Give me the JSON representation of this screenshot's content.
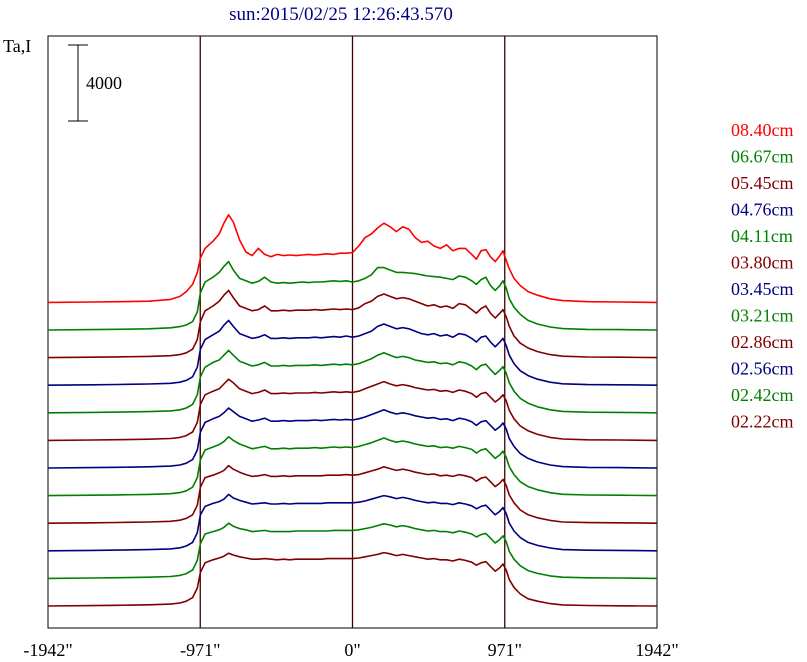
{
  "chart_data": {
    "type": "line",
    "title": "sun:2015/02/25 12:26:43.570",
    "ylabel": "Ta,I",
    "xlabel": "",
    "scale_bar_label": "4000",
    "scale_bar_value": 4000,
    "xlim": [
      -1942,
      1942
    ],
    "x_ticks": [
      {
        "value": -1942,
        "label": "-1942\""
      },
      {
        "value": -971,
        "label": "-971\""
      },
      {
        "value": 0,
        "label": "0\""
      },
      {
        "value": 971,
        "label": "971\""
      },
      {
        "value": 1942,
        "label": "1942\""
      }
    ],
    "vertical_lines": [
      -971,
      0,
      971
    ],
    "stack_offset": 2300,
    "x": [
      -1942,
      -1660,
      -1500,
      -1300,
      -1160,
      -1100,
      -1060,
      -1020,
      -990,
      -970,
      -940,
      -890,
      -850,
      -820,
      -790,
      -760,
      -720,
      -680,
      -640,
      -600,
      -560,
      -520,
      -480,
      -440,
      -400,
      -360,
      -320,
      -280,
      -240,
      -200,
      -160,
      -120,
      -80,
      -40,
      0,
      40,
      80,
      120,
      160,
      200,
      240,
      280,
      320,
      360,
      400,
      440,
      480,
      520,
      560,
      600,
      640,
      680,
      720,
      760,
      790,
      820,
      850,
      880,
      910,
      940,
      960,
      980,
      1000,
      1030,
      1070,
      1120,
      1180,
      1260,
      1340,
      1500,
      1700,
      1942
    ],
    "series": [
      {
        "name": "08.40cm",
        "color": "#ff0000",
        "values": [
          0,
          30,
          60,
          100,
          250,
          500,
          900,
          1500,
          2500,
          3700,
          4500,
          5100,
          5700,
          6600,
          7300,
          6700,
          5200,
          4200,
          3900,
          4500,
          4000,
          3800,
          4000,
          3900,
          3950,
          3900,
          3950,
          4000,
          3950,
          4000,
          4050,
          4000,
          4100,
          4100,
          4150,
          4700,
          5400,
          5700,
          6200,
          6600,
          6300,
          5900,
          6300,
          6100,
          5400,
          5000,
          5100,
          4700,
          4500,
          4800,
          4300,
          4500,
          4500,
          4000,
          3600,
          4300,
          4400,
          3800,
          3400,
          3900,
          4300,
          3500,
          2800,
          2000,
          1400,
          900,
          600,
          300,
          150,
          60,
          30,
          0
        ]
      },
      {
        "name": "06.67cm",
        "color": "#008000",
        "values": [
          0,
          30,
          60,
          100,
          180,
          280,
          420,
          700,
          1500,
          3100,
          4000,
          4400,
          4800,
          5300,
          5700,
          5000,
          4300,
          4100,
          3900,
          4050,
          4400,
          4000,
          3900,
          3950,
          3900,
          3950,
          4000,
          3950,
          4000,
          4000,
          4050,
          4100,
          4050,
          4100,
          4000,
          4100,
          4300,
          4600,
          5200,
          5200,
          5000,
          4800,
          4800,
          4750,
          4700,
          4600,
          4500,
          4450,
          4400,
          4300,
          4200,
          4500,
          4400,
          4100,
          3800,
          4200,
          4400,
          3700,
          3300,
          3700,
          4100,
          3500,
          2600,
          1900,
          1300,
          800,
          500,
          250,
          120,
          50,
          30,
          0
        ]
      },
      {
        "name": "05.45cm",
        "color": "#800000",
        "values": [
          0,
          30,
          60,
          100,
          160,
          250,
          400,
          700,
          1500,
          3000,
          3900,
          4300,
          4700,
          5200,
          5600,
          5000,
          4300,
          4100,
          3900,
          4000,
          4300,
          3900,
          3900,
          3950,
          3900,
          3950,
          3950,
          3950,
          4000,
          3950,
          4000,
          4050,
          4000,
          4050,
          4000,
          4150,
          4500,
          4700,
          5100,
          5300,
          5100,
          4900,
          5000,
          4900,
          4700,
          4500,
          4300,
          4400,
          4200,
          4300,
          4100,
          4500,
          4400,
          4000,
          3700,
          4100,
          4300,
          3700,
          3300,
          3700,
          4000,
          3400,
          2600,
          1800,
          1200,
          800,
          500,
          250,
          120,
          50,
          30,
          0
        ]
      },
      {
        "name": "04.76cm",
        "color": "#000080",
        "values": [
          0,
          30,
          60,
          100,
          160,
          250,
          400,
          700,
          1500,
          3000,
          3800,
          4200,
          4500,
          5000,
          5400,
          4900,
          4300,
          4100,
          3900,
          4000,
          4200,
          3900,
          3900,
          3950,
          3900,
          3950,
          3950,
          3950,
          4000,
          3950,
          4000,
          4050,
          4000,
          4100,
          4000,
          4100,
          4300,
          4500,
          4900,
          5100,
          4900,
          4700,
          4800,
          4700,
          4500,
          4300,
          4200,
          4300,
          4100,
          4200,
          4000,
          4300,
          4200,
          3900,
          3600,
          4000,
          4100,
          3600,
          3200,
          3600,
          3900,
          3300,
          2500,
          1800,
          1200,
          800,
          500,
          250,
          120,
          50,
          30,
          0
        ]
      },
      {
        "name": "04.11cm",
        "color": "#008000",
        "values": [
          0,
          30,
          60,
          100,
          160,
          250,
          400,
          700,
          1500,
          3000,
          3800,
          4200,
          4400,
          4800,
          5200,
          4800,
          4300,
          4100,
          3900,
          4000,
          4200,
          3900,
          3900,
          3950,
          3900,
          3950,
          3950,
          3950,
          4000,
          3950,
          4000,
          4050,
          4000,
          4050,
          4000,
          4100,
          4300,
          4500,
          4800,
          5000,
          4800,
          4600,
          4700,
          4600,
          4400,
          4300,
          4200,
          4250,
          4100,
          4150,
          4000,
          4250,
          4150,
          3900,
          3600,
          3950,
          4050,
          3600,
          3200,
          3550,
          3850,
          3300,
          2500,
          1800,
          1200,
          800,
          500,
          250,
          120,
          50,
          30,
          0
        ]
      },
      {
        "name": "03.80cm",
        "color": "#800000",
        "values": [
          0,
          30,
          60,
          100,
          160,
          250,
          400,
          700,
          1500,
          3000,
          3800,
          4100,
          4300,
          4700,
          5100,
          4800,
          4300,
          4100,
          3900,
          4000,
          4200,
          3900,
          3900,
          3950,
          3900,
          3950,
          3950,
          3950,
          4000,
          3950,
          4000,
          4050,
          4000,
          4050,
          4000,
          4100,
          4300,
          4500,
          4700,
          4900,
          4700,
          4550,
          4650,
          4550,
          4400,
          4300,
          4200,
          4250,
          4100,
          4150,
          4000,
          4200,
          4100,
          3900,
          3600,
          3900,
          4000,
          3600,
          3200,
          3500,
          3800,
          3300,
          2500,
          1800,
          1200,
          800,
          500,
          250,
          120,
          50,
          30,
          0
        ]
      },
      {
        "name": "03.45cm",
        "color": "#000080",
        "values": [
          0,
          30,
          60,
          100,
          160,
          250,
          400,
          700,
          1500,
          3000,
          3800,
          4100,
          4300,
          4600,
          5000,
          4700,
          4300,
          4100,
          3900,
          4000,
          4150,
          3900,
          3900,
          3950,
          3900,
          3950,
          3950,
          3950,
          4000,
          3950,
          4000,
          4050,
          4000,
          4050,
          4000,
          4100,
          4250,
          4450,
          4650,
          4850,
          4650,
          4500,
          4600,
          4500,
          4350,
          4250,
          4150,
          4200,
          4050,
          4100,
          3950,
          4150,
          4050,
          3850,
          3550,
          3850,
          3950,
          3550,
          3150,
          3450,
          3750,
          3250,
          2450,
          1800,
          1200,
          800,
          500,
          250,
          120,
          50,
          30,
          0
        ]
      },
      {
        "name": "03.21cm",
        "color": "#008000",
        "values": [
          0,
          30,
          60,
          100,
          160,
          250,
          400,
          700,
          1500,
          3000,
          3800,
          4050,
          4250,
          4500,
          4900,
          4600,
          4300,
          4100,
          3900,
          4000,
          4100,
          3900,
          3900,
          3950,
          3900,
          3950,
          3950,
          3950,
          4000,
          3950,
          4000,
          4050,
          4000,
          4050,
          4000,
          4100,
          4250,
          4400,
          4600,
          4800,
          4600,
          4450,
          4550,
          4450,
          4300,
          4200,
          4100,
          4150,
          4000,
          4050,
          3950,
          4100,
          4000,
          3850,
          3550,
          3800,
          3900,
          3500,
          3100,
          3400,
          3700,
          3200,
          2400,
          1750,
          1150,
          750,
          480,
          240,
          110,
          50,
          30,
          0
        ]
      },
      {
        "name": "02.86cm",
        "color": "#800000",
        "values": [
          0,
          30,
          60,
          100,
          160,
          250,
          400,
          700,
          1500,
          3000,
          3800,
          4000,
          4200,
          4400,
          4800,
          4500,
          4250,
          4050,
          3900,
          3950,
          4050,
          3900,
          3900,
          3950,
          3900,
          3950,
          3950,
          3950,
          3950,
          3950,
          4000,
          4000,
          4000,
          4050,
          4000,
          4050,
          4200,
          4350,
          4500,
          4700,
          4550,
          4400,
          4500,
          4400,
          4250,
          4150,
          4050,
          4100,
          3950,
          4000,
          3900,
          4050,
          3950,
          3800,
          3500,
          3750,
          3850,
          3450,
          3050,
          3350,
          3650,
          3150,
          2350,
          1700,
          1100,
          700,
          450,
          230,
          100,
          50,
          30,
          0
        ]
      },
      {
        "name": "02.56cm",
        "color": "#000080",
        "values": [
          0,
          30,
          60,
          100,
          160,
          250,
          400,
          700,
          1500,
          3000,
          3700,
          3950,
          4100,
          4300,
          4700,
          4400,
          4200,
          4050,
          3900,
          3950,
          4000,
          3900,
          3900,
          3950,
          3900,
          3950,
          3950,
          3950,
          3950,
          3950,
          4000,
          4000,
          4000,
          4000,
          4000,
          4050,
          4150,
          4300,
          4450,
          4600,
          4500,
          4350,
          4450,
          4350,
          4200,
          4100,
          4000,
          4050,
          3950,
          3950,
          3850,
          4000,
          3900,
          3750,
          3500,
          3700,
          3800,
          3400,
          3000,
          3300,
          3600,
          3100,
          2300,
          1650,
          1100,
          700,
          450,
          230,
          100,
          50,
          30,
          0
        ]
      },
      {
        "name": "02.42cm",
        "color": "#008000",
        "values": [
          0,
          30,
          60,
          100,
          160,
          250,
          400,
          700,
          1500,
          2900,
          3700,
          3900,
          4050,
          4250,
          4600,
          4350,
          4150,
          4050,
          3900,
          3950,
          4000,
          3900,
          3900,
          3900,
          3900,
          3950,
          3950,
          3950,
          3950,
          3950,
          3950,
          4000,
          4000,
          4000,
          4000,
          4050,
          4150,
          4250,
          4400,
          4550,
          4450,
          4300,
          4400,
          4300,
          4150,
          4050,
          3950,
          4000,
          3900,
          3900,
          3800,
          3950,
          3850,
          3700,
          3450,
          3650,
          3750,
          3350,
          2950,
          3250,
          3550,
          3050,
          2250,
          1600,
          1050,
          650,
          420,
          210,
          100,
          50,
          30,
          0
        ]
      },
      {
        "name": "02.22cm",
        "color": "#800000",
        "values": [
          0,
          30,
          60,
          100,
          160,
          250,
          400,
          700,
          1500,
          2800,
          3600,
          3850,
          4000,
          4150,
          4400,
          4250,
          4100,
          4000,
          3900,
          3900,
          3950,
          3900,
          3850,
          3900,
          3850,
          3900,
          3900,
          3900,
          3900,
          3900,
          3950,
          3950,
          3950,
          3950,
          3950,
          4000,
          4100,
          4200,
          4300,
          4450,
          4350,
          4200,
          4300,
          4200,
          4100,
          4000,
          3900,
          3950,
          3850,
          3850,
          3750,
          3900,
          3800,
          3650,
          3400,
          3600,
          3700,
          3300,
          2900,
          3200,
          3500,
          3000,
          2200,
          1550,
          1000,
          600,
          400,
          200,
          90,
          40,
          20,
          0
        ]
      }
    ]
  }
}
